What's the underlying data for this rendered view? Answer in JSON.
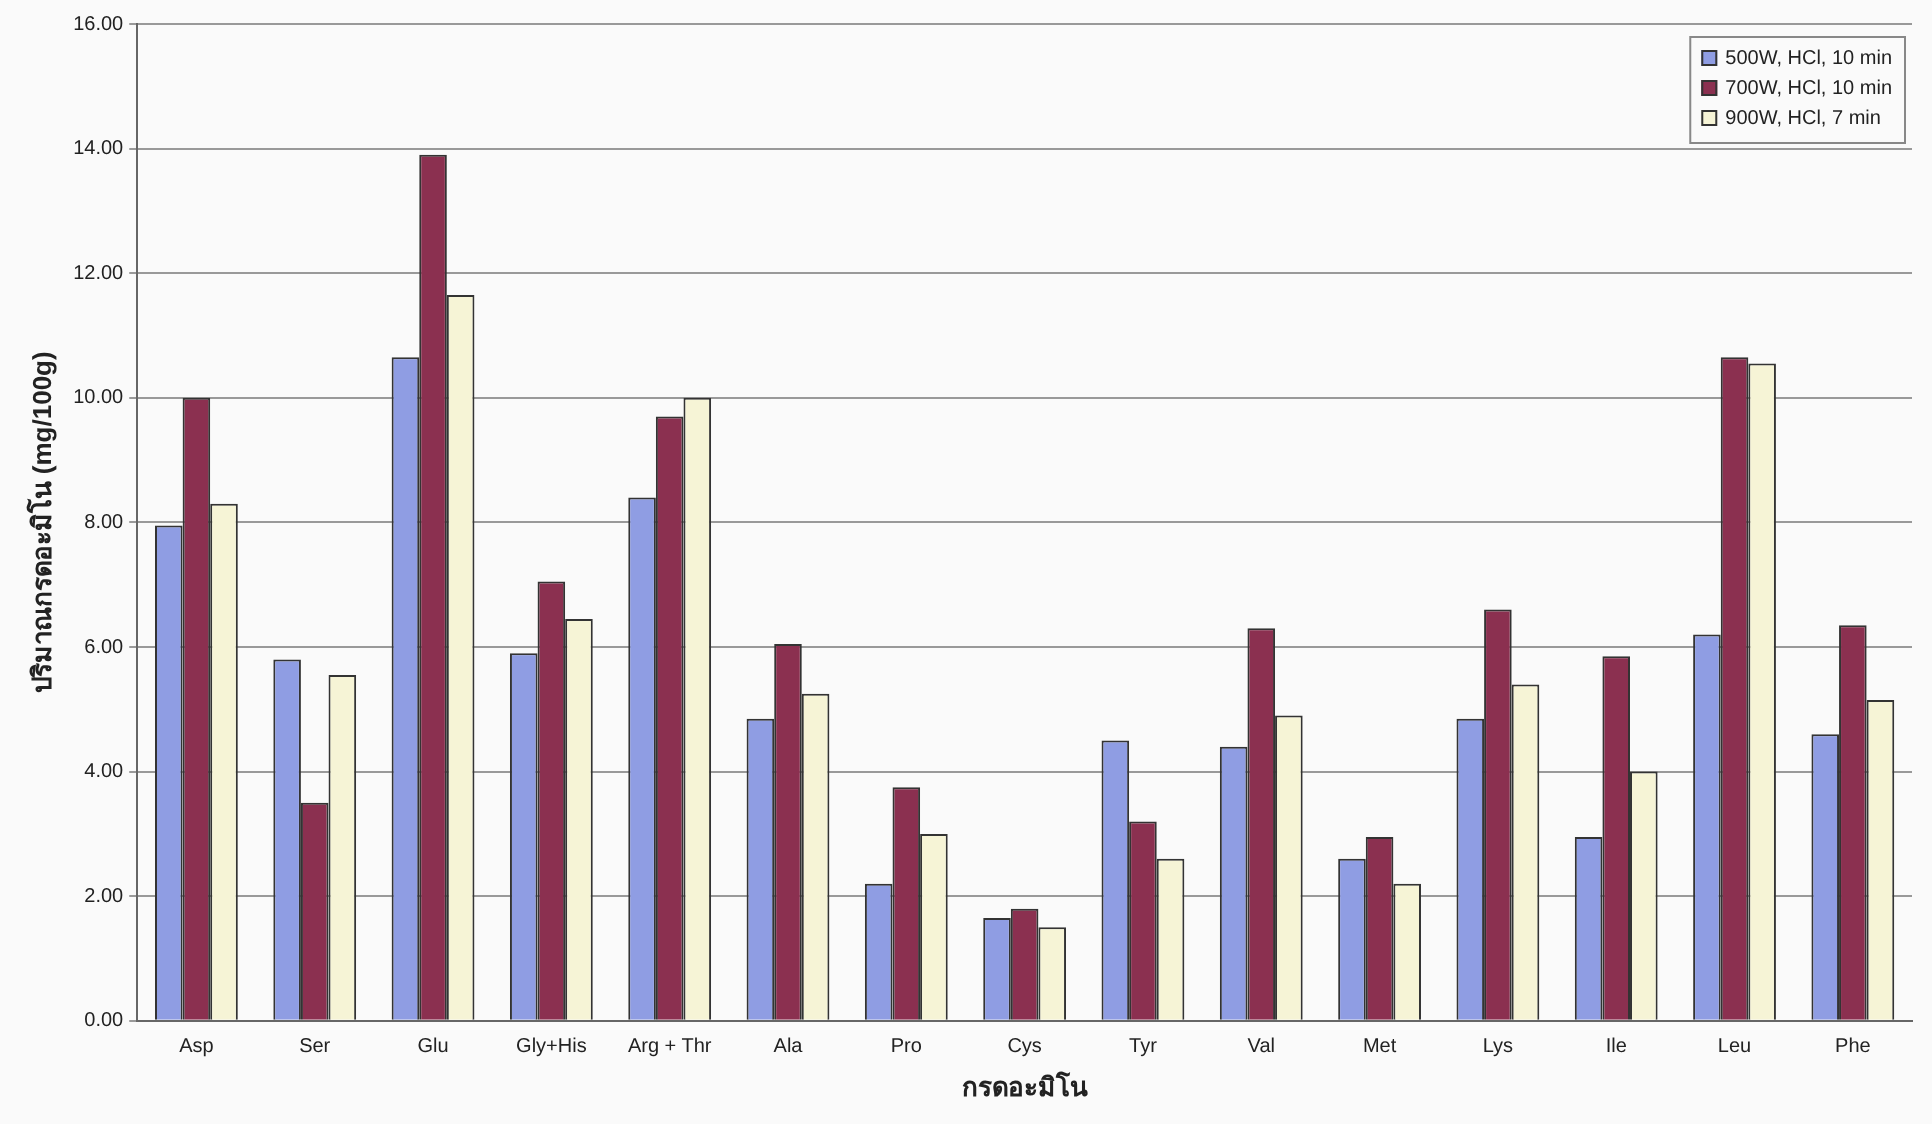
{
  "chart_data": {
    "type": "bar",
    "ylabel": "ปริมาณกรดอะมิโน (mg/100g)",
    "xlabel": "กรดอะมิโน",
    "categories": [
      "Asp",
      "Ser",
      "Glu",
      "Gly+His",
      "Arg + Thr",
      "Ala",
      "Pro",
      "Cys",
      "Tyr",
      "Val",
      "Met",
      "Lys",
      "Ile",
      "Leu",
      "Phe"
    ],
    "series": [
      {
        "name": "500W, HCl, 10 min",
        "color": "#8f9de3",
        "values": [
          7.95,
          5.8,
          10.65,
          5.9,
          8.4,
          4.85,
          2.2,
          1.65,
          4.5,
          4.4,
          2.6,
          4.85,
          2.95,
          6.2,
          4.6
        ]
      },
      {
        "name": "700W, HCl, 10 min",
        "color": "#8b3050",
        "values": [
          10.0,
          3.5,
          13.9,
          7.05,
          9.7,
          6.05,
          3.75,
          1.8,
          3.2,
          6.3,
          2.95,
          6.6,
          5.85,
          10.65,
          6.35
        ]
      },
      {
        "name": "900W, HCl, 7 min",
        "color": "#f6f4d6",
        "values": [
          8.3,
          5.55,
          11.65,
          6.45,
          10.0,
          5.25,
          3.0,
          1.5,
          2.6,
          4.9,
          2.2,
          5.4,
          4.0,
          10.55,
          5.15
        ]
      }
    ],
    "ylim": [
      0,
      16
    ],
    "yticks": [
      {
        "value": 0,
        "label": "0.00"
      },
      {
        "value": 2,
        "label": "2.00"
      },
      {
        "value": 4,
        "label": "4.00"
      },
      {
        "value": 6,
        "label": "6.00"
      },
      {
        "value": 8,
        "label": "8.00"
      },
      {
        "value": 10,
        "label": "10.00"
      },
      {
        "value": 12,
        "label": "12.00"
      },
      {
        "value": 14,
        "label": "14.00"
      },
      {
        "value": 16,
        "label": "16.00"
      }
    ],
    "grid": "y",
    "legend": "top right"
  }
}
